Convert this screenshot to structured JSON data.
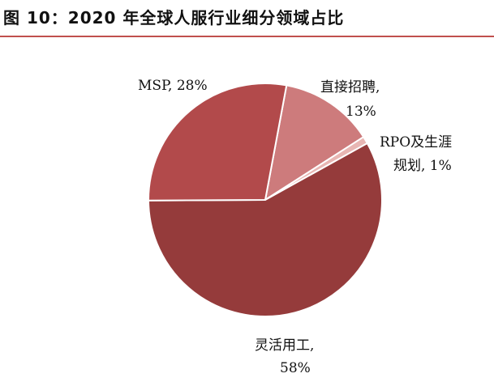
{
  "figure": {
    "title": "图 10：2020 年全球人服行业细分领域占比"
  },
  "chart_data": {
    "type": "pie",
    "title": "",
    "slices": [
      {
        "name": "直接招聘",
        "value": 13,
        "value_label": "13%",
        "color": "#cd7b7c"
      },
      {
        "name": "RPO及生涯规划",
        "value": 1,
        "value_label": "1%",
        "color": "#e8b6b3"
      },
      {
        "name": "灵活用工",
        "value": 58,
        "value_label": "58%",
        "color": "#953b3b"
      },
      {
        "name": "MSP",
        "value": 28,
        "value_label": "28%",
        "color": "#b24a4b"
      }
    ],
    "label_lines": {
      "msp": "MSP, 28%",
      "direct_line1": "直接招聘,",
      "direct_line2": "13%",
      "rpo_line1": "RPO及生涯",
      "rpo_line2": "规划, 1%",
      "flex_line1": "灵活用工,",
      "flex_line2": "58%"
    },
    "start_angle_deg": 10.5,
    "direction": "clockwise",
    "slice_border_color": "#ffffff"
  }
}
